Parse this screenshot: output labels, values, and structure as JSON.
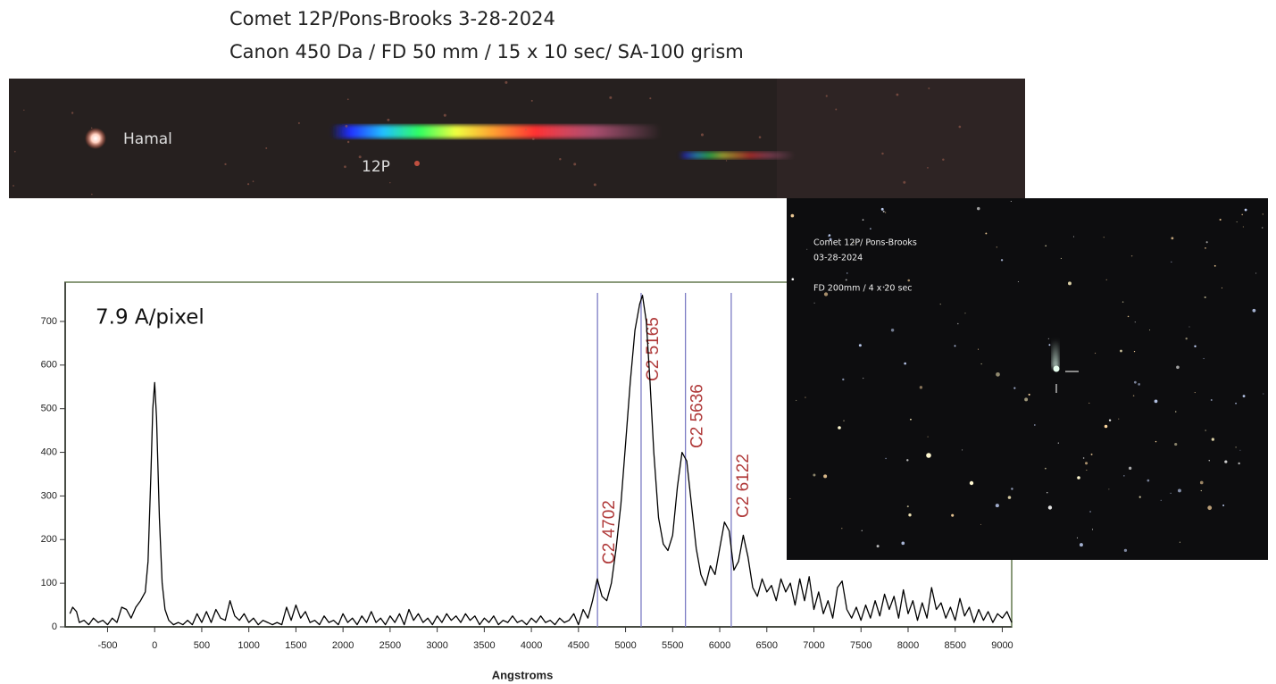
{
  "header": {
    "title": "Comet 12P/Pons-Brooks  3-28-2024",
    "subtitle": "Canon 450 Da / FD 50 mm / 15 x 10 sec/ SA-100 grism"
  },
  "spectrum_image": {
    "labels": [
      "Hamal",
      "12P"
    ]
  },
  "inset_image": {
    "lines": [
      "Comet 12P/ Pons-Brooks",
      "03-28-2024",
      "FD 200mm / 4 x 20 sec"
    ]
  },
  "chart_data": {
    "type": "line",
    "annotation": "7.9 A/pixel",
    "x_label": "Angstroms",
    "color": "#000000",
    "xlim": [
      -950,
      9100
    ],
    "ylim": [
      0,
      790
    ],
    "xticks": [
      -500,
      0,
      500,
      1000,
      1500,
      2000,
      2500,
      3000,
      3500,
      4000,
      4500,
      5000,
      5500,
      6000,
      6500,
      7000,
      7500,
      8000,
      8500,
      9000
    ],
    "yticks": [
      0,
      100,
      200,
      300,
      400,
      500,
      600,
      700
    ],
    "lines": [
      {
        "x": 4702,
        "label": "C2 4702"
      },
      {
        "x": 5165,
        "label": "C2 5165"
      },
      {
        "x": 5636,
        "label": "C2 5636"
      },
      {
        "x": 6122,
        "label": "C2 6122"
      }
    ],
    "line_color": "#7c7cc4",
    "label_color": "#b03a3a",
    "frame_color": "#8a9a7a",
    "x": [
      -900,
      -870,
      -830,
      -800,
      -750,
      -700,
      -650,
      -600,
      -550,
      -500,
      -450,
      -400,
      -350,
      -300,
      -250,
      -200,
      -150,
      -100,
      -70,
      -40,
      -20,
      0,
      20,
      50,
      80,
      110,
      150,
      200,
      250,
      300,
      350,
      400,
      450,
      500,
      550,
      600,
      650,
      700,
      750,
      800,
      850,
      900,
      950,
      1000,
      1050,
      1100,
      1150,
      1200,
      1250,
      1300,
      1350,
      1400,
      1450,
      1500,
      1550,
      1600,
      1650,
      1700,
      1750,
      1800,
      1850,
      1900,
      1950,
      2000,
      2050,
      2100,
      2150,
      2200,
      2250,
      2300,
      2350,
      2400,
      2450,
      2500,
      2550,
      2600,
      2650,
      2700,
      2750,
      2800,
      2850,
      2900,
      2950,
      3000,
      3050,
      3100,
      3150,
      3200,
      3250,
      3300,
      3350,
      3400,
      3450,
      3500,
      3550,
      3600,
      3650,
      3700,
      3750,
      3800,
      3850,
      3900,
      3950,
      4000,
      4050,
      4100,
      4150,
      4200,
      4250,
      4300,
      4350,
      4400,
      4450,
      4500,
      4550,
      4600,
      4650,
      4700,
      4750,
      4800,
      4850,
      4900,
      4950,
      5000,
      5050,
      5100,
      5150,
      5180,
      5220,
      5260,
      5300,
      5350,
      5400,
      5450,
      5500,
      5550,
      5600,
      5650,
      5700,
      5750,
      5800,
      5850,
      5900,
      5950,
      6000,
      6050,
      6100,
      6150,
      6200,
      6250,
      6300,
      6350,
      6400,
      6450,
      6500,
      6550,
      6600,
      6650,
      6700,
      6750,
      6800,
      6850,
      6900,
      6950,
      7000,
      7050,
      7100,
      7150,
      7200,
      7250,
      7300,
      7350,
      7400,
      7450,
      7500,
      7550,
      7600,
      7650,
      7700,
      7750,
      7800,
      7850,
      7900,
      7950,
      8000,
      8050,
      8100,
      8150,
      8200,
      8250,
      8300,
      8350,
      8400,
      8450,
      8500,
      8550,
      8600,
      8650,
      8700,
      8750,
      8800,
      8850,
      8900,
      8950,
      9000,
      9050,
      9100
    ],
    "values": [
      30,
      45,
      35,
      10,
      15,
      5,
      20,
      10,
      15,
      5,
      20,
      10,
      45,
      40,
      20,
      45,
      60,
      80,
      150,
      350,
      500,
      560,
      480,
      250,
      100,
      40,
      15,
      5,
      10,
      5,
      15,
      5,
      30,
      10,
      35,
      10,
      40,
      20,
      15,
      60,
      25,
      15,
      30,
      10,
      20,
      5,
      15,
      10,
      5,
      10,
      5,
      45,
      15,
      50,
      20,
      35,
      10,
      15,
      5,
      25,
      10,
      15,
      5,
      30,
      10,
      20,
      5,
      25,
      10,
      35,
      10,
      20,
      5,
      25,
      10,
      30,
      5,
      40,
      15,
      30,
      10,
      20,
      5,
      25,
      10,
      30,
      15,
      25,
      10,
      30,
      15,
      25,
      5,
      20,
      10,
      25,
      5,
      15,
      10,
      25,
      10,
      15,
      5,
      20,
      10,
      25,
      10,
      15,
      5,
      20,
      10,
      15,
      30,
      5,
      40,
      20,
      60,
      110,
      70,
      60,
      100,
      180,
      280,
      420,
      560,
      680,
      740,
      760,
      700,
      560,
      400,
      250,
      190,
      175,
      210,
      320,
      400,
      380,
      280,
      180,
      120,
      95,
      140,
      120,
      180,
      240,
      220,
      130,
      150,
      210,
      160,
      90,
      70,
      110,
      80,
      95,
      60,
      110,
      80,
      100,
      50,
      110,
      60,
      115,
      40,
      80,
      30,
      60,
      20,
      90,
      105,
      40,
      20,
      45,
      15,
      50,
      20,
      60,
      25,
      75,
      40,
      70,
      20,
      85,
      30,
      60,
      15,
      55,
      20,
      90,
      40,
      55,
      20,
      45,
      15,
      65,
      25,
      45,
      10,
      40,
      15,
      35,
      10,
      30,
      20,
      35,
      10
    ]
  }
}
